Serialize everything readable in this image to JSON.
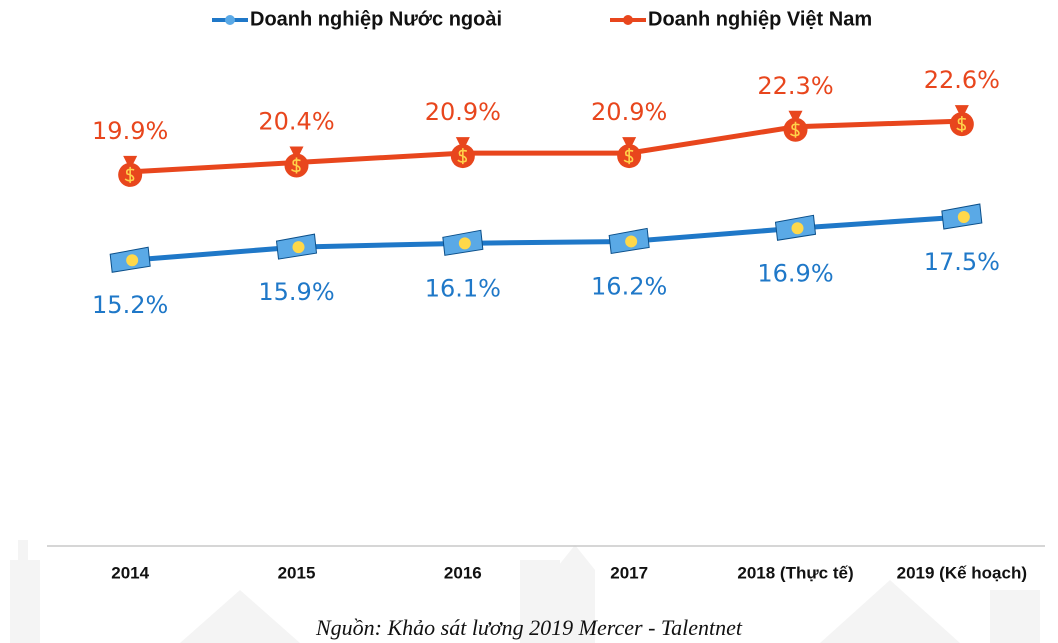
{
  "chart_data": {
    "type": "line",
    "categories": [
      "2014",
      "2015",
      "2016",
      "2017",
      "2018 (Thực tế)",
      "2019 (Kế hoạch)"
    ],
    "series": [
      {
        "name": "Doanh nghiệp Nước ngoài",
        "color": "#1f78c8",
        "values": [
          15.2,
          15.9,
          16.1,
          16.2,
          16.9,
          17.5
        ],
        "value_labels": [
          "15.2%",
          "15.9%",
          "16.1%",
          "16.2%",
          "16.9%",
          "17.5%"
        ]
      },
      {
        "name": "Doanh nghiệp Việt Nam",
        "color": "#e8461d",
        "values": [
          19.9,
          20.4,
          20.9,
          20.9,
          22.3,
          22.6
        ],
        "value_labels": [
          "19.9%",
          "20.4%",
          "20.9%",
          "20.9%",
          "22.3%",
          "22.6%"
        ]
      }
    ],
    "ylim": [
      0,
      25
    ],
    "legend": "top",
    "source": "Nguồn: Khảo sát lương 2019 Mercer - Talentnet"
  }
}
